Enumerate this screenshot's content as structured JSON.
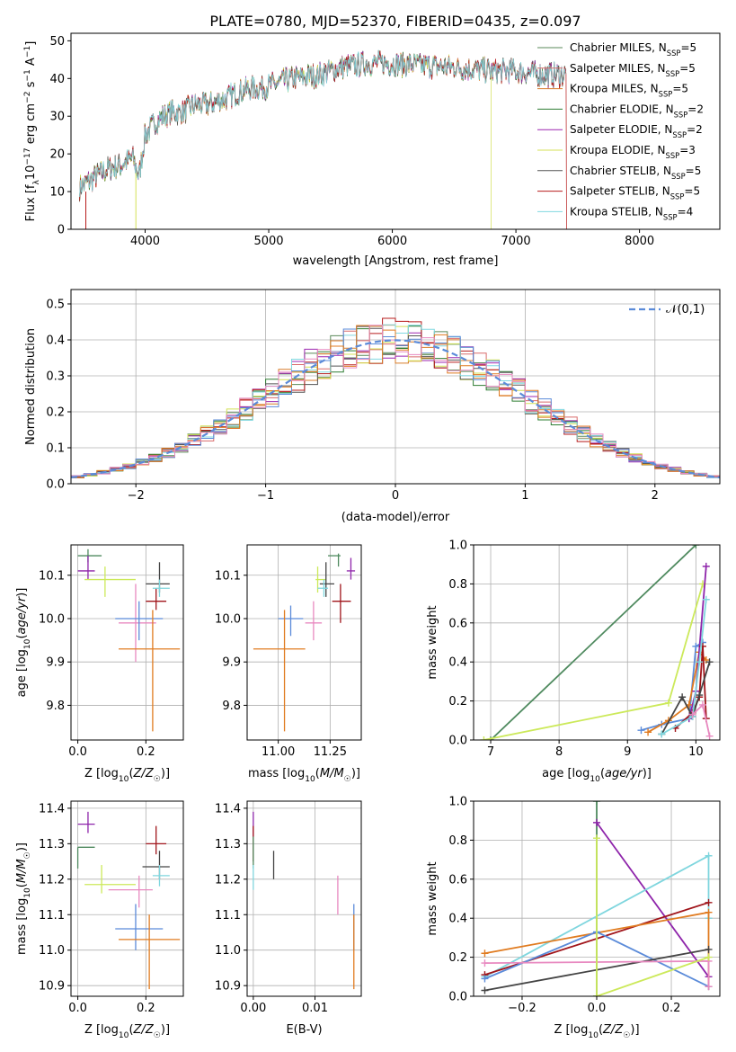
{
  "figure": {
    "title": "PLATE=0780, MJD=52370, FIBERID=0435, z=0.097"
  },
  "colors": {
    "Chabrier MILES": "#5a8a5a",
    "Salpeter MILES": "#d96b6b",
    "Kroupa MILES": "#d77c2a",
    "Chabrier ELODIE": "#2e7d32",
    "Salpeter ELODIE": "#9c27b0",
    "Kroupa ELODIE": "#d4e157",
    "Chabrier STELIB": "#555555",
    "Salpeter STELIB": "#b71c1c",
    "Kroupa STELIB": "#80d8e0",
    "blue": "#5b8bd9",
    "pink": "#e889c0",
    "orange": "#e07b20",
    "lime": "#cce95a",
    "green": "#4f8a5f",
    "purple": "#8e24aa",
    "darkred": "#a0141a",
    "gray": "#444444",
    "cyan": "#7fd6de"
  },
  "chart_data": [
    {
      "type": "line",
      "name": "spectrum",
      "title": "PLATE=0780, MJD=52370, FIBERID=0435, z=0.097",
      "xlabel": "wavelength [Angstrom, rest frame]",
      "ylabel": "Flux [f_λ 10^-17 erg cm^-2 s^-1 A^-1]",
      "xlim": [
        3400,
        8650
      ],
      "ylim": [
        0,
        52
      ],
      "xticks": [
        4000,
        5000,
        6000,
        7000,
        8000
      ],
      "yticks": [
        0,
        10,
        20,
        30,
        40,
        50
      ],
      "legend": [
        {
          "label": "Chabrier MILES",
          "sub": "SSP",
          "n": "5"
        },
        {
          "label": "Salpeter MILES",
          "sub": "SSP",
          "n": "5"
        },
        {
          "label": "Kroupa MILES",
          "sub": "SSP",
          "n": "5"
        },
        {
          "label": "Chabrier ELODIE",
          "sub": "SSP",
          "n": "2"
        },
        {
          "label": "Salpeter ELODIE",
          "sub": "SSP",
          "n": "2"
        },
        {
          "label": "Kroupa ELODIE",
          "sub": "SSP",
          "n": "3"
        },
        {
          "label": "Chabrier STELIB",
          "sub": "SSP",
          "n": "5"
        },
        {
          "label": "Salpeter STELIB",
          "sub": "SSP",
          "n": "5"
        },
        {
          "label": "Kroupa STELIB",
          "sub": "SSP",
          "n": "4"
        }
      ],
      "legend_position": "top-right",
      "continuum_knots": [
        [
          3470,
          11
        ],
        [
          3600,
          14
        ],
        [
          3700,
          16
        ],
        [
          3800,
          17
        ],
        [
          3900,
          19
        ],
        [
          3950,
          14
        ],
        [
          4000,
          25
        ],
        [
          4100,
          29
        ],
        [
          4200,
          31
        ],
        [
          4300,
          31
        ],
        [
          4400,
          33
        ],
        [
          4500,
          33
        ],
        [
          4600,
          34
        ],
        [
          4800,
          37
        ],
        [
          5000,
          38
        ],
        [
          5200,
          40
        ],
        [
          5400,
          41
        ],
        [
          5600,
          43
        ],
        [
          5800,
          44
        ],
        [
          6000,
          44
        ],
        [
          6200,
          43.5
        ],
        [
          6500,
          43
        ],
        [
          6800,
          42
        ],
        [
          7000,
          42
        ],
        [
          7200,
          41
        ],
        [
          7400,
          41
        ]
      ],
      "range_end": {
        "Kroupa ELODIE": 6800,
        "Salpeter STELIB": 7410
      }
    },
    {
      "type": "bar",
      "name": "residual histogram",
      "xlabel": "(data-model)/error",
      "ylabel": "Normed distribution",
      "xlim": [
        -2.5,
        2.5
      ],
      "ylim": [
        0,
        0.54
      ],
      "xticks": [
        -2,
        -1,
        0,
        1,
        2
      ],
      "yticks": [
        0.0,
        0.1,
        0.2,
        0.3,
        0.4,
        0.5
      ],
      "bin_width": 0.1,
      "reference_curve": {
        "label": "𝒩(0,1)",
        "mean": 0,
        "sigma": 1
      },
      "legend_position": "top-right",
      "grid": true
    },
    {
      "type": "scatter",
      "name": "age vs Z",
      "xlabel": "Z [log10(Z/Z☉)]",
      "ylabel": "age [log10(age/yr)]",
      "xlim": [
        -0.02,
        0.31
      ],
      "ylim": [
        9.72,
        10.17
      ],
      "xticks": [
        0.0,
        0.2
      ],
      "yticks": [
        9.8,
        9.9,
        10.0,
        10.1
      ],
      "points": [
        {
          "c": "green",
          "x": 0.03,
          "xl": 0.0,
          "xh": 0.07,
          "y": 10.145,
          "yl": 10.13,
          "yh": 10.16
        },
        {
          "c": "purple",
          "x": 0.03,
          "xl": 0.0,
          "xh": 0.05,
          "y": 10.11,
          "yl": 10.09,
          "yh": 10.145
        },
        {
          "c": "lime",
          "x": 0.08,
          "xl": 0.02,
          "xh": 0.17,
          "y": 10.09,
          "yl": 10.05,
          "yh": 10.12
        },
        {
          "c": "pink",
          "x": 0.17,
          "xl": 0.12,
          "xh": 0.23,
          "y": 9.99,
          "yl": 9.9,
          "yh": 10.08
        },
        {
          "c": "blue",
          "x": 0.18,
          "xl": 0.11,
          "xh": 0.25,
          "y": 10.0,
          "yl": 9.95,
          "yh": 10.04
        },
        {
          "c": "orange",
          "x": 0.22,
          "xl": 0.12,
          "xh": 0.3,
          "y": 9.93,
          "yl": 9.74,
          "yh": 10.02
        },
        {
          "c": "darkred",
          "x": 0.23,
          "xl": 0.2,
          "xh": 0.26,
          "y": 10.04,
          "yl": 10.02,
          "yh": 10.07
        },
        {
          "c": "gray",
          "x": 0.24,
          "xl": 0.2,
          "xh": 0.27,
          "y": 10.08,
          "yl": 10.06,
          "yh": 10.13
        },
        {
          "c": "cyan",
          "x": 0.24,
          "xl": 0.22,
          "xh": 0.27,
          "y": 10.07,
          "yl": 10.05,
          "yh": 10.09
        }
      ]
    },
    {
      "type": "scatter",
      "name": "age vs mass",
      "xlabel": "mass [log10(M/M☉)]",
      "ylabel": "",
      "xlim": [
        10.85,
        11.4
      ],
      "ylim": [
        9.72,
        10.17
      ],
      "xticks": [
        11.0,
        11.25
      ],
      "yticks": [
        9.8,
        9.9,
        10.0,
        10.1
      ],
      "points": [
        {
          "c": "green",
          "x": 11.29,
          "xl": 11.24,
          "xh": 11.3,
          "y": 10.145,
          "yl": 10.12,
          "yh": 10.15
        },
        {
          "c": "purple",
          "x": 11.35,
          "xl": 11.33,
          "xh": 11.37,
          "y": 10.11,
          "yl": 10.09,
          "yh": 10.14
        },
        {
          "c": "lime",
          "x": 11.19,
          "xl": 11.18,
          "xh": 11.23,
          "y": 10.09,
          "yl": 10.06,
          "yh": 10.12
        },
        {
          "c": "pink",
          "x": 11.17,
          "xl": 11.13,
          "xh": 11.21,
          "y": 9.99,
          "yl": 9.95,
          "yh": 10.04
        },
        {
          "c": "blue",
          "x": 11.06,
          "xl": 11.0,
          "xh": 11.12,
          "y": 10.0,
          "yl": 9.96,
          "yh": 10.03
        },
        {
          "c": "orange",
          "x": 11.03,
          "xl": 10.88,
          "xh": 11.13,
          "y": 9.93,
          "yl": 9.74,
          "yh": 10.02
        },
        {
          "c": "darkred",
          "x": 11.3,
          "xl": 11.26,
          "xh": 11.35,
          "y": 10.04,
          "yl": 9.99,
          "yh": 10.08
        },
        {
          "c": "gray",
          "x": 11.23,
          "xl": 11.2,
          "xh": 11.27,
          "y": 10.08,
          "yl": 10.05,
          "yh": 10.13
        },
        {
          "c": "cyan",
          "x": 11.22,
          "xl": 11.19,
          "xh": 11.24,
          "y": 10.07,
          "yl": 10.05,
          "yh": 10.09
        }
      ]
    },
    {
      "type": "line",
      "name": "mass weight vs age",
      "xlabel": "age [log10(age/yr)]",
      "ylabel": "mass weight",
      "xlim": [
        6.75,
        10.35
      ],
      "ylim": [
        0,
        1.0
      ],
      "xticks": [
        7,
        8,
        9,
        10
      ],
      "yticks": [
        0.0,
        0.2,
        0.4,
        0.6,
        0.8,
        1.0
      ],
      "series": [
        {
          "c": "green",
          "points": [
            [
              7.0,
              0.0
            ],
            [
              10.0,
              1.0
            ]
          ]
        },
        {
          "c": "lime",
          "points": [
            [
              6.9,
              0.0
            ],
            [
              9.6,
              0.19
            ],
            [
              10.1,
              0.8
            ]
          ]
        },
        {
          "c": "blue",
          "points": [
            [
              9.2,
              0.05
            ],
            [
              9.5,
              0.08
            ],
            [
              9.9,
              0.11
            ],
            [
              10.0,
              0.48
            ],
            [
              10.1,
              0.5
            ]
          ]
        },
        {
          "c": "orange",
          "points": [
            [
              9.3,
              0.04
            ],
            [
              9.6,
              0.1
            ],
            [
              9.9,
              0.18
            ],
            [
              10.05,
              0.45
            ],
            [
              10.15,
              0.41
            ]
          ]
        },
        {
          "c": "purple",
          "points": [
            [
              9.9,
              0.11
            ],
            [
              10.0,
              0.25
            ],
            [
              10.15,
              0.89
            ]
          ]
        },
        {
          "c": "darkred",
          "points": [
            [
              9.7,
              0.06
            ],
            [
              9.95,
              0.14
            ],
            [
              10.05,
              0.22
            ],
            [
              10.1,
              0.48
            ],
            [
              10.15,
              0.11
            ]
          ]
        },
        {
          "c": "gray",
          "points": [
            [
              9.5,
              0.03
            ],
            [
              9.8,
              0.22
            ],
            [
              9.95,
              0.12
            ],
            [
              10.05,
              0.23
            ],
            [
              10.2,
              0.4
            ]
          ]
        },
        {
          "c": "cyan",
          "points": [
            [
              9.5,
              0.03
            ],
            [
              9.95,
              0.12
            ],
            [
              10.05,
              0.4
            ],
            [
              10.15,
              0.72
            ]
          ]
        },
        {
          "c": "pink",
          "points": [
            [
              9.95,
              0.13
            ],
            [
              10.1,
              0.18
            ],
            [
              10.2,
              0.02
            ]
          ]
        }
      ]
    },
    {
      "type": "scatter",
      "name": "mass vs Z",
      "xlabel": "Z [log10(Z/Z☉)]",
      "ylabel": "mass [log10(M/M☉)]",
      "xlim": [
        -0.02,
        0.31
      ],
      "ylim": [
        10.87,
        11.42
      ],
      "xticks": [
        0.0,
        0.2
      ],
      "yticks": [
        10.9,
        11.0,
        11.1,
        11.2,
        11.3,
        11.4
      ],
      "points": [
        {
          "c": "green",
          "x": 0.0,
          "xl": 0.0,
          "xh": 0.05,
          "y": 11.29,
          "yl": 11.23,
          "yh": 11.29
        },
        {
          "c": "purple",
          "x": 0.03,
          "xl": 0.0,
          "xh": 0.05,
          "y": 11.355,
          "yl": 11.33,
          "yh": 11.39
        },
        {
          "c": "lime",
          "x": 0.07,
          "xl": 0.02,
          "xh": 0.17,
          "y": 11.185,
          "yl": 11.16,
          "yh": 11.24
        },
        {
          "c": "pink",
          "x": 0.18,
          "xl": 0.09,
          "xh": 0.22,
          "y": 11.17,
          "yl": 11.12,
          "yh": 11.21
        },
        {
          "c": "blue",
          "x": 0.17,
          "xl": 0.11,
          "xh": 0.25,
          "y": 11.06,
          "yl": 11.0,
          "yh": 11.13
        },
        {
          "c": "orange",
          "x": 0.21,
          "xl": 0.12,
          "xh": 0.3,
          "y": 11.03,
          "yl": 10.89,
          "yh": 11.1
        },
        {
          "c": "darkred",
          "x": 0.23,
          "xl": 0.2,
          "xh": 0.26,
          "y": 11.3,
          "yl": 11.27,
          "yh": 11.35
        },
        {
          "c": "gray",
          "x": 0.24,
          "xl": 0.19,
          "xh": 0.27,
          "y": 11.235,
          "yl": 11.2,
          "yh": 11.28
        },
        {
          "c": "cyan",
          "x": 0.24,
          "xl": 0.22,
          "xh": 0.27,
          "y": 11.21,
          "yl": 11.18,
          "yh": 11.24
        }
      ]
    },
    {
      "type": "scatter",
      "name": "mass vs E(B-V)",
      "xlabel": "E(B-V)",
      "ylabel": "",
      "xlim": [
        -0.001,
        0.0175
      ],
      "ylim": [
        10.87,
        11.42
      ],
      "xticks": [
        0.0,
        0.01
      ],
      "yticks": [
        10.9,
        11.0,
        11.1,
        11.2,
        11.3,
        11.4
      ],
      "points": [
        {
          "c": "purple",
          "x": 0.0,
          "xl": 0.0,
          "xh": 0.0,
          "y": 11.355,
          "yl": 11.32,
          "yh": 11.39
        },
        {
          "c": "darkred",
          "x": 0.0,
          "xl": 0.0,
          "xh": 0.0,
          "y": 11.3,
          "yl": 11.25,
          "yh": 11.35
        },
        {
          "c": "green",
          "x": 0.0,
          "xl": 0.0,
          "xh": 0.0,
          "y": 11.29,
          "yl": 11.23,
          "yh": 11.32
        },
        {
          "c": "cyan",
          "x": 0.0,
          "xl": 0.0,
          "xh": 0.0,
          "y": 11.21,
          "yl": 11.17,
          "yh": 11.24
        },
        {
          "c": "gray",
          "x": 0.0033,
          "xl": 0.0033,
          "xh": 0.0033,
          "y": 11.235,
          "yl": 11.2,
          "yh": 11.28
        },
        {
          "c": "pink",
          "x": 0.0137,
          "xl": 0.0137,
          "xh": 0.0137,
          "y": 11.17,
          "yl": 11.1,
          "yh": 11.21
        },
        {
          "c": "blue",
          "x": 0.0163,
          "xl": 0.0163,
          "xh": 0.0163,
          "y": 11.06,
          "yl": 11.0,
          "yh": 11.13
        },
        {
          "c": "orange",
          "x": 0.0163,
          "xl": 0.0163,
          "xh": 0.0163,
          "y": 11.03,
          "yl": 10.89,
          "yh": 11.1
        }
      ]
    },
    {
      "type": "line",
      "name": "mass weight vs Z",
      "xlabel": "Z [log10(Z/Z☉)]",
      "ylabel": "mass weight",
      "xlim": [
        -0.33,
        0.33
      ],
      "ylim": [
        0,
        1.0
      ],
      "xticks": [
        -0.2,
        0.0,
        0.2
      ],
      "yticks": [
        0.0,
        0.2,
        0.4,
        0.6,
        0.8,
        1.0
      ],
      "series": [
        {
          "c": "green",
          "points": [
            [
              0.0,
              1.0
            ],
            [
              0.0,
              0.0
            ]
          ]
        },
        {
          "c": "purple",
          "points": [
            [
              0.0,
              0.89
            ],
            [
              0.3,
              0.1
            ]
          ]
        },
        {
          "c": "cyan",
          "points": [
            [
              -0.3,
              0.1
            ],
            [
              0.3,
              0.72
            ],
            [
              0.3,
              0.4
            ]
          ]
        },
        {
          "c": "darkred",
          "points": [
            [
              -0.3,
              0.11
            ],
            [
              0.3,
              0.48
            ]
          ]
        },
        {
          "c": "orange",
          "points": [
            [
              -0.3,
              0.22
            ],
            [
              0.3,
              0.43
            ],
            [
              0.3,
              0.05
            ]
          ]
        },
        {
          "c": "blue",
          "points": [
            [
              -0.3,
              0.09
            ],
            [
              0.0,
              0.33
            ],
            [
              0.3,
              0.05
            ]
          ]
        },
        {
          "c": "gray",
          "points": [
            [
              -0.3,
              0.03
            ],
            [
              0.3,
              0.24
            ]
          ]
        },
        {
          "c": "pink",
          "points": [
            [
              -0.3,
              0.17
            ],
            [
              0.3,
              0.18
            ],
            [
              0.3,
              0.05
            ]
          ]
        },
        {
          "c": "lime",
          "points": [
            [
              0.0,
              0.81
            ],
            [
              0.0,
              0.0
            ],
            [
              0.3,
              0.2
            ]
          ]
        }
      ]
    }
  ]
}
